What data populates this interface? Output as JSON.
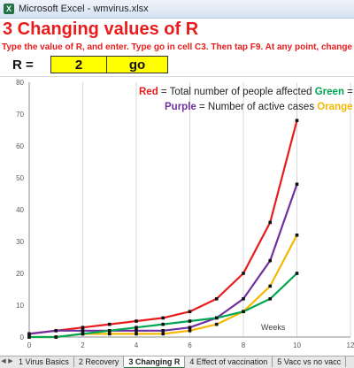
{
  "window": {
    "title": "Microsoft Excel - wmvirus.xlsx"
  },
  "sheet": {
    "heading": "3 Changing values of R",
    "instructions": "Type the value of R, and enter. Type go in cell C3. Then tap F9. At any point, change the",
    "r_label": "R =",
    "r_value": "2",
    "go_cell": "go"
  },
  "tabs": [
    "1 Virus Basics",
    "2 Recovery",
    "3 Changing R",
    "4 Effect of vaccination",
    "5 Vacc vs no vacc"
  ],
  "active_tab": "3 Changing R",
  "legend": {
    "line1": {
      "red_word": "Red",
      "red_text": " = Total number of people affected  ",
      "green_word": "Green",
      "green_text": " ="
    },
    "line2": {
      "purple_word": "Purple",
      "purple_text": " = Number of active cases  ",
      "orange_word": "Orange"
    }
  },
  "chart_data": {
    "type": "line",
    "xlabel": "Weeks",
    "xlim": [
      0,
      12
    ],
    "ylim": [
      0,
      80
    ],
    "xticks": [
      0,
      2,
      4,
      6,
      8,
      10,
      12
    ],
    "yticks": [
      0,
      10,
      20,
      30,
      40,
      50,
      60,
      70,
      80
    ],
    "grid": "vertical",
    "legend_position": "top-right",
    "series": [
      {
        "name": "Red",
        "color": "#e81c1c",
        "x": [
          0,
          1,
          2,
          3,
          4,
          5,
          6,
          7,
          8,
          9,
          10
        ],
        "y": [
          1,
          2,
          3,
          4,
          5,
          6,
          8,
          12,
          20,
          36,
          68
        ]
      },
      {
        "name": "Purple",
        "color": "#7030a0",
        "x": [
          0,
          1,
          2,
          3,
          4,
          5,
          6,
          7,
          8,
          9,
          10
        ],
        "y": [
          1,
          2,
          2,
          2,
          2,
          2,
          3,
          6,
          12,
          24,
          48
        ]
      },
      {
        "name": "Orange",
        "color": "#f5b800",
        "x": [
          0,
          1,
          2,
          3,
          4,
          5,
          6,
          7,
          8,
          9,
          10
        ],
        "y": [
          0,
          0,
          1,
          1,
          1,
          1,
          2,
          4,
          8,
          16,
          32
        ]
      },
      {
        "name": "Green",
        "color": "#00a651",
        "x": [
          0,
          1,
          2,
          3,
          4,
          5,
          6,
          7,
          8,
          9,
          10
        ],
        "y": [
          0,
          0,
          1,
          2,
          3,
          4,
          5,
          6,
          8,
          12,
          20
        ]
      }
    ]
  }
}
